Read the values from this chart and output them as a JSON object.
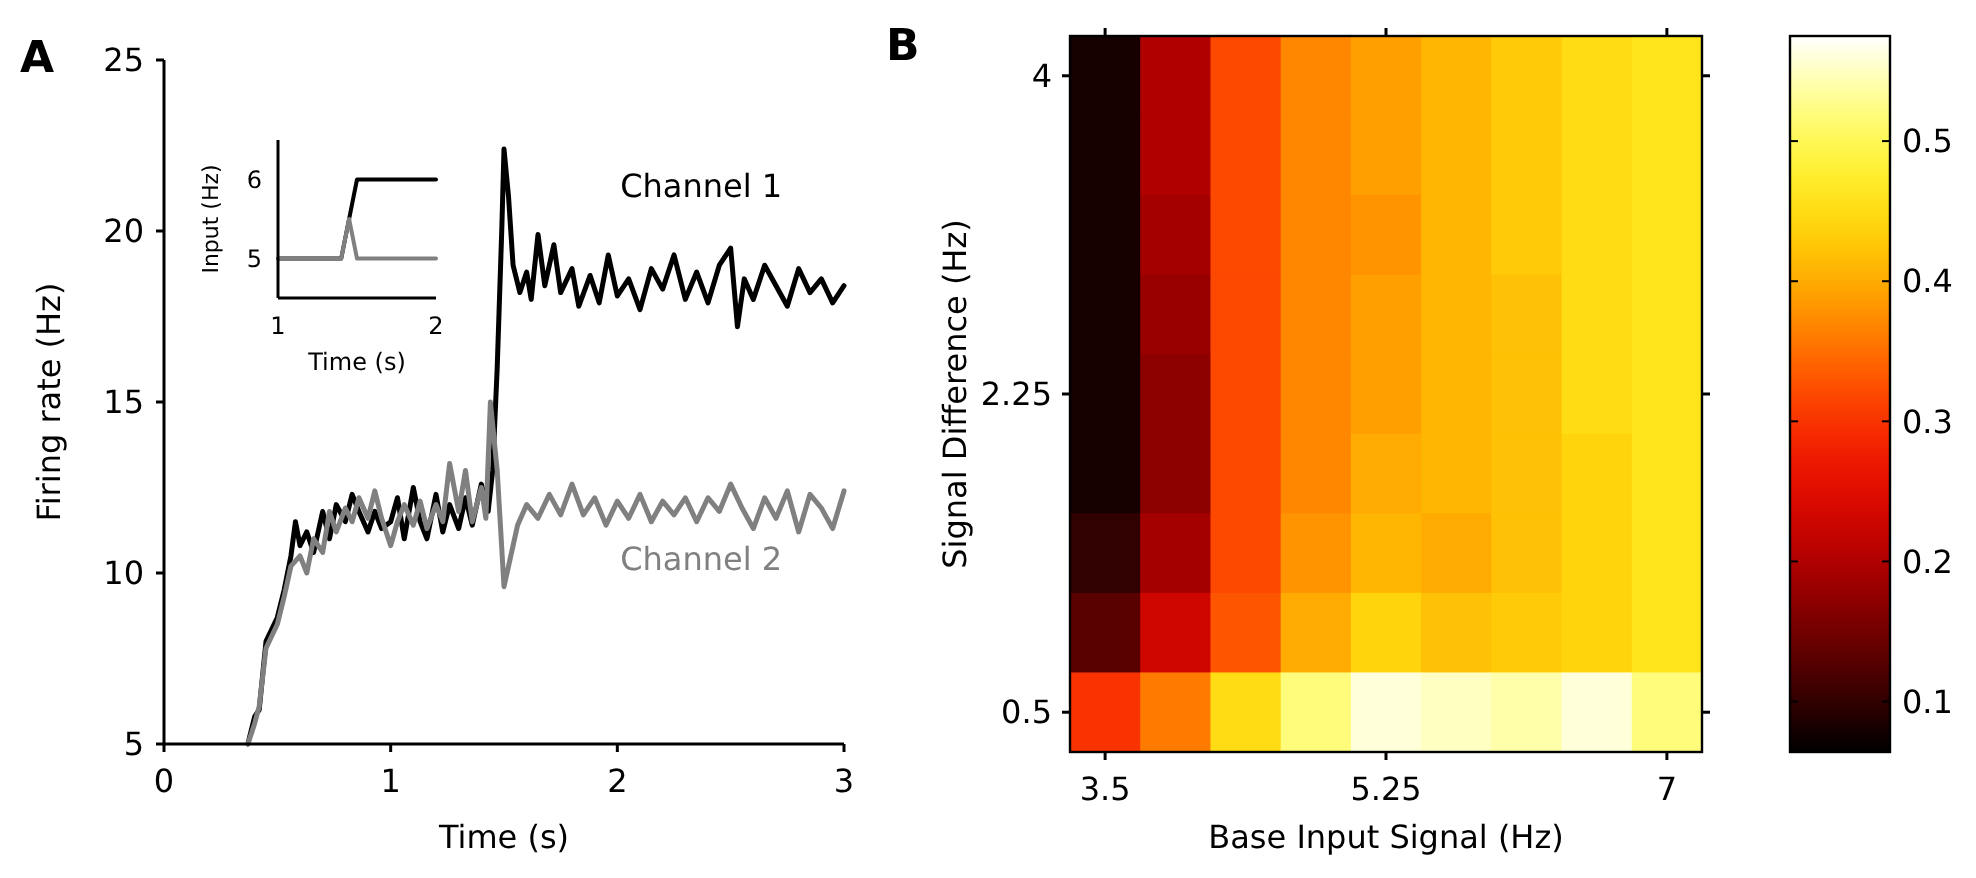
{
  "chart_data": [
    {
      "type": "line",
      "title": "A",
      "xlabel": "Time (s)",
      "ylabel": "Firing rate (Hz)",
      "xlim": [
        0,
        3
      ],
      "ylim": [
        5,
        25
      ],
      "xticks": [
        0,
        1,
        2,
        3
      ],
      "yticks": [
        5,
        10,
        15,
        20,
        25
      ],
      "series": [
        {
          "name": "Channel 1",
          "color": "#000000",
          "x": [
            0.37,
            0.4,
            0.42,
            0.45,
            0.5,
            0.53,
            0.56,
            0.58,
            0.6,
            0.63,
            0.66,
            0.7,
            0.73,
            0.76,
            0.8,
            0.83,
            0.86,
            0.9,
            0.93,
            0.96,
            1.0,
            1.03,
            1.06,
            1.1,
            1.13,
            1.16,
            1.2,
            1.23,
            1.26,
            1.3,
            1.33,
            1.36,
            1.4,
            1.43,
            1.45,
            1.47,
            1.49,
            1.5,
            1.52,
            1.54,
            1.57,
            1.6,
            1.62,
            1.65,
            1.68,
            1.72,
            1.75,
            1.8,
            1.83,
            1.88,
            1.92,
            1.96,
            2.0,
            2.05,
            2.1,
            2.15,
            2.2,
            2.25,
            2.3,
            2.35,
            2.4,
            2.45,
            2.5,
            2.53,
            2.56,
            2.6,
            2.65,
            2.7,
            2.75,
            2.8,
            2.85,
            2.9,
            2.95,
            3.0
          ],
          "values": [
            5,
            5.8,
            6.0,
            8,
            8.7,
            9.5,
            10.5,
            11.5,
            10.8,
            11.2,
            10.6,
            11.8,
            11.0,
            12.0,
            11.5,
            12.3,
            11.8,
            11.2,
            11.8,
            11.3,
            11.5,
            12.2,
            11.0,
            12.5,
            11.5,
            11.0,
            12.3,
            11.2,
            12.0,
            11.3,
            12.2,
            11.4,
            12.6,
            11.8,
            13,
            16,
            20,
            22.4,
            21,
            19.0,
            18.2,
            18.8,
            18.0,
            19.9,
            18.4,
            19.6,
            18.2,
            18.9,
            17.8,
            18.7,
            17.9,
            19.3,
            18.1,
            18.6,
            17.7,
            18.9,
            18.3,
            19.3,
            18.0,
            18.8,
            17.9,
            19.0,
            19.5,
            17.2,
            18.6,
            18.0,
            19.0,
            18.4,
            17.8,
            18.9,
            18.2,
            18.6,
            17.9,
            18.4
          ]
        },
        {
          "name": "Channel 2",
          "color": "#808080",
          "x": [
            0.37,
            0.4,
            0.42,
            0.45,
            0.5,
            0.53,
            0.56,
            0.6,
            0.63,
            0.66,
            0.7,
            0.73,
            0.76,
            0.8,
            0.83,
            0.86,
            0.9,
            0.93,
            0.96,
            1.0,
            1.03,
            1.06,
            1.1,
            1.13,
            1.16,
            1.2,
            1.23,
            1.26,
            1.3,
            1.33,
            1.36,
            1.4,
            1.42,
            1.44,
            1.47,
            1.5,
            1.53,
            1.56,
            1.6,
            1.65,
            1.7,
            1.75,
            1.8,
            1.85,
            1.9,
            1.95,
            2.0,
            2.05,
            2.1,
            2.15,
            2.2,
            2.25,
            2.3,
            2.35,
            2.4,
            2.45,
            2.5,
            2.55,
            2.6,
            2.65,
            2.7,
            2.75,
            2.8,
            2.85,
            2.9,
            2.95,
            3.0
          ],
          "values": [
            5,
            5.6,
            6.1,
            7.8,
            8.5,
            9.3,
            10.2,
            10.5,
            10.0,
            11.0,
            10.6,
            11.8,
            11.2,
            11.9,
            11.5,
            12.2,
            11.6,
            12.4,
            11.6,
            10.8,
            11.5,
            12.0,
            11.4,
            12.1,
            11.3,
            12.0,
            11.5,
            13.2,
            11.8,
            13.0,
            11.5,
            12.5,
            11.6,
            15.0,
            13.0,
            9.6,
            10.5,
            11.4,
            12.0,
            11.6,
            12.3,
            11.7,
            12.6,
            11.7,
            12.2,
            11.4,
            12.1,
            11.6,
            12.3,
            11.5,
            12.1,
            11.7,
            12.2,
            11.5,
            12.2,
            11.8,
            12.6,
            11.9,
            11.3,
            12.2,
            11.6,
            12.4,
            11.2,
            12.3,
            11.9,
            11.3,
            12.4
          ]
        }
      ]
    },
    {
      "type": "line",
      "xlabel": "Time (s)",
      "ylabel": "Input (Hz)",
      "xlim": [
        1,
        2
      ],
      "ylim": [
        4.5,
        6.5
      ],
      "xticks": [
        1,
        2
      ],
      "yticks": [
        5,
        6
      ],
      "series": [
        {
          "color": "#000000",
          "x": [
            1,
            1.4,
            1.5,
            2
          ],
          "values": [
            5,
            5,
            6,
            6
          ]
        },
        {
          "color": "#808080",
          "x": [
            1,
            1.4,
            1.45,
            1.5,
            2
          ],
          "values": [
            5,
            5,
            5.5,
            5,
            5
          ]
        }
      ]
    },
    {
      "type": "heatmap",
      "title": "B",
      "xlabel": "Base Input Signal (Hz)",
      "ylabel": "Signal Difference (Hz)",
      "categories": [
        "3.5",
        null,
        null,
        null,
        "5.25",
        null,
        null,
        null,
        "7"
      ],
      "y_categories": [
        "4",
        null,
        null,
        null,
        "2.25",
        null,
        null,
        null,
        "0.5"
      ],
      "cells": [
        [
          0.08,
          0.2,
          0.32,
          0.37,
          0.39,
          0.41,
          0.43,
          0.45,
          0.46
        ],
        [
          0.08,
          0.2,
          0.32,
          0.37,
          0.39,
          0.41,
          0.43,
          0.45,
          0.46
        ],
        [
          0.08,
          0.19,
          0.32,
          0.37,
          0.38,
          0.41,
          0.43,
          0.45,
          0.46
        ],
        [
          0.08,
          0.18,
          0.32,
          0.37,
          0.39,
          0.41,
          0.42,
          0.45,
          0.46
        ],
        [
          0.08,
          0.17,
          0.32,
          0.37,
          0.39,
          0.41,
          0.42,
          0.45,
          0.46
        ],
        [
          0.08,
          0.17,
          0.32,
          0.37,
          0.4,
          0.41,
          0.42,
          0.44,
          0.46
        ],
        [
          0.1,
          0.19,
          0.32,
          0.38,
          0.41,
          0.4,
          0.42,
          0.44,
          0.46
        ],
        [
          0.13,
          0.23,
          0.33,
          0.4,
          0.44,
          0.42,
          0.43,
          0.44,
          0.46
        ],
        [
          0.3,
          0.36,
          0.45,
          0.52,
          0.56,
          0.55,
          0.54,
          0.56,
          0.52
        ]
      ],
      "clim": [
        0.064,
        0.575
      ],
      "cticks": [
        0.1,
        0.2,
        0.3,
        0.4,
        0.5
      ]
    }
  ]
}
